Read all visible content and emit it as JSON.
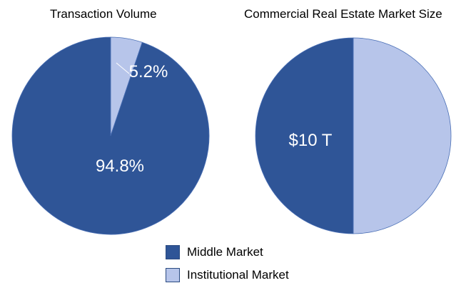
{
  "chart_data": [
    {
      "type": "pie",
      "title": "Transaction Volume",
      "categories": [
        "Institutional Market",
        "Middle Market"
      ],
      "values": [
        5.2,
        94.8
      ],
      "data_labels": [
        "5.2%",
        "94.8%"
      ],
      "colors": [
        "#B7C5EA",
        "#2F5597"
      ],
      "start": "12 o'clock, clockwise"
    },
    {
      "type": "pie",
      "title": "Commercial Real Estate Market Size",
      "categories": [
        "Institutional Market",
        "Middle Market"
      ],
      "values": [
        50,
        50
      ],
      "data_labels": [
        "",
        "$10 T"
      ],
      "colors": [
        "#B7C5EA",
        "#2F5597"
      ],
      "start": "12 o'clock, clockwise"
    }
  ],
  "legend": {
    "placement": "bottom-center",
    "items": [
      {
        "label": "Middle Market",
        "color": "#2F5597"
      },
      {
        "label": "Institutional Market",
        "color": "#B7C5EA"
      }
    ]
  }
}
